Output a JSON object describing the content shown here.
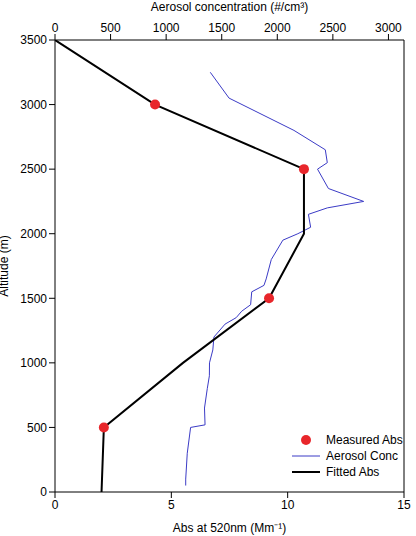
{
  "chart_data": {
    "type": "line",
    "xlabel": "Abs at 520nm (Mm⁻¹)",
    "ylabel": "Altitude (m)",
    "x2label": "Aerosol concentration (#/cm³)",
    "xlim": [
      0,
      15
    ],
    "xticks": [
      0,
      5,
      10,
      15
    ],
    "x2lim": [
      0,
      3140
    ],
    "x2ticks": [
      0,
      500,
      1000,
      1500,
      2000,
      2500,
      3000
    ],
    "ylim": [
      0,
      3500
    ],
    "yticks": [
      0,
      500,
      1000,
      1500,
      2000,
      2500,
      3000,
      3500
    ],
    "legend": "lower right",
    "series": [
      {
        "name": "Measured Abs",
        "type": "scatter",
        "color": "#e8262b",
        "marker": "circle",
        "x": [
          4.3,
          10.7,
          9.2,
          2.1
        ],
        "y": [
          3000,
          2500,
          1500,
          500
        ]
      },
      {
        "name": "Aerosol Conc",
        "type": "line",
        "color": "#3b3bc6",
        "line_style": "solid",
        "axis": "x2",
        "x": [
          1176,
          1176,
          1190,
          1220,
          1350,
          1345,
          1370,
          1389,
          1390,
          1420,
          1430,
          1530,
          1630,
          1680,
          1760,
          1770,
          1880,
          1900,
          1946,
          2050,
          2185,
          2300,
          2280,
          2450,
          2777,
          2460,
          2362,
          2450,
          2432,
          2150,
          1566,
          1397
        ],
        "y": [
          50,
          100,
          300,
          500,
          520,
          650,
          800,
          900,
          1000,
          1100,
          1200,
          1300,
          1350,
          1400,
          1450,
          1550,
          1600,
          1650,
          1800,
          1950,
          2000,
          2050,
          2150,
          2200,
          2250,
          2350,
          2500,
          2550,
          2650,
          2800,
          3050,
          3250
        ]
      },
      {
        "name": "Fitted Abs",
        "type": "line",
        "color": "#000000",
        "line_style": "solid",
        "x": [
          0,
          4.3,
          10.7,
          10.7,
          9.2,
          5.5,
          2.1,
          2.0
        ],
        "y": [
          3500,
          3000,
          2500,
          2000,
          1500,
          1000,
          500,
          0
        ]
      }
    ]
  }
}
